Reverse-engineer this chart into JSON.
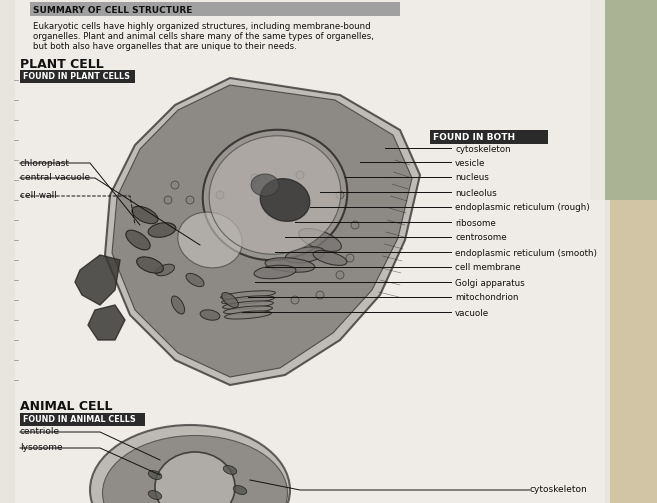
{
  "title": "SUMMARY OF CELL STRUCTURE",
  "subtitle_line1": "Eukaryotic cells have highly organized structures, including membrane-bound",
  "subtitle_line2": "organelles. Plant and animal cells share many of the same types of organelles,",
  "subtitle_line3": "but both also have organelles that are unique to their needs.",
  "plant_cell_label": "PLANT CELL",
  "plant_found_label": "FOUND IN PLANT CELLS",
  "found_both_label": "FOUND IN BOTH",
  "animal_cell_label": "ANIMAL CELL",
  "animal_found_label": "FOUND IN ANIMAL CELLS",
  "plant_only_organelles": [
    [
      "chloroplast",
      22,
      163
    ],
    [
      "central vacuole",
      22,
      178
    ],
    [
      "cell wall",
      22,
      193
    ]
  ],
  "found_both_organelles": [
    [
      "cytoskeleton",
      455,
      149
    ],
    [
      "vesicle",
      455,
      163
    ],
    [
      "nucleus",
      455,
      178
    ],
    [
      "nucleolus",
      455,
      193
    ],
    [
      "endoplasmic reticulum (rough)",
      455,
      208
    ],
    [
      "ribosome",
      455,
      223
    ],
    [
      "centrosome",
      455,
      238
    ],
    [
      "endoplasmic reticulum (smooth)",
      455,
      253
    ],
    [
      "cell membrane",
      455,
      268
    ],
    [
      "Golgi apparatus",
      455,
      283
    ],
    [
      "mitochondrion",
      455,
      298
    ],
    [
      "vacuole",
      455,
      313
    ]
  ],
  "animal_only": [
    [
      "centriole",
      22,
      432
    ],
    [
      "lysosome",
      22,
      448
    ]
  ],
  "animal_found_both": [
    "cytoskeleton"
  ],
  "page_bg": "#e8e4de",
  "white_bg": "#f0ede8",
  "title_bg": "#a0a0a0",
  "found_plant_bg": "#2a2a2a",
  "found_both_bg": "#2a2a2a",
  "found_animal_bg": "#2a2a2a",
  "text_dark": "#111111",
  "text_white": "#ffffff",
  "line_col": "#111111",
  "cell_dark": "#2a2a2a",
  "cell_mid": "#555555",
  "cell_light": "#999999",
  "cell_bg": "#c8c4c0",
  "green_corner": "#7a8c5a",
  "tan_corner": "#b8a060"
}
